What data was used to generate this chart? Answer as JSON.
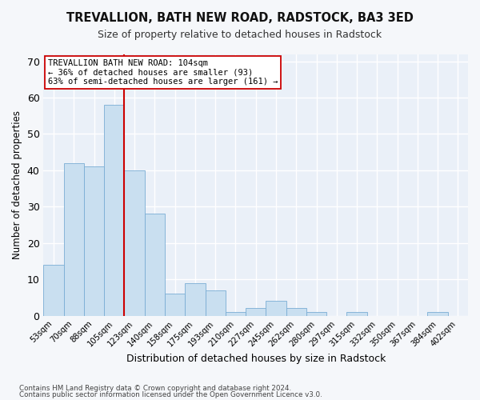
{
  "title": "TREVALLION, BATH NEW ROAD, RADSTOCK, BA3 3ED",
  "subtitle": "Size of property relative to detached houses in Radstock",
  "xlabel": "Distribution of detached houses by size in Radstock",
  "ylabel": "Number of detached properties",
  "bar_color": "#c9dff0",
  "bar_edge_color": "#7aadd4",
  "background_color": "#eaf0f8",
  "grid_color": "#ffffff",
  "fig_background": "#f5f7fa",
  "categories": [
    "53sqm",
    "70sqm",
    "88sqm",
    "105sqm",
    "123sqm",
    "140sqm",
    "158sqm",
    "175sqm",
    "193sqm",
    "210sqm",
    "227sqm",
    "245sqm",
    "262sqm",
    "280sqm",
    "297sqm",
    "315sqm",
    "332sqm",
    "350sqm",
    "367sqm",
    "384sqm",
    "402sqm"
  ],
  "values": [
    14,
    42,
    41,
    58,
    40,
    28,
    6,
    9,
    7,
    1,
    2,
    4,
    2,
    1,
    0,
    1,
    0,
    0,
    0,
    1,
    0
  ],
  "ylim": [
    0,
    72
  ],
  "yticks": [
    0,
    10,
    20,
    30,
    40,
    50,
    60,
    70
  ],
  "vline_x": 3.5,
  "vline_color": "#cc0000",
  "annotation_title": "TREVALLION BATH NEW ROAD: 104sqm",
  "annotation_line1": "← 36% of detached houses are smaller (93)",
  "annotation_line2": "63% of semi-detached houses are larger (161) →",
  "annotation_box_color": "#ffffff",
  "annotation_box_edge": "#cc0000",
  "footer_line1": "Contains HM Land Registry data © Crown copyright and database right 2024.",
  "footer_line2": "Contains public sector information licensed under the Open Government Licence v3.0."
}
